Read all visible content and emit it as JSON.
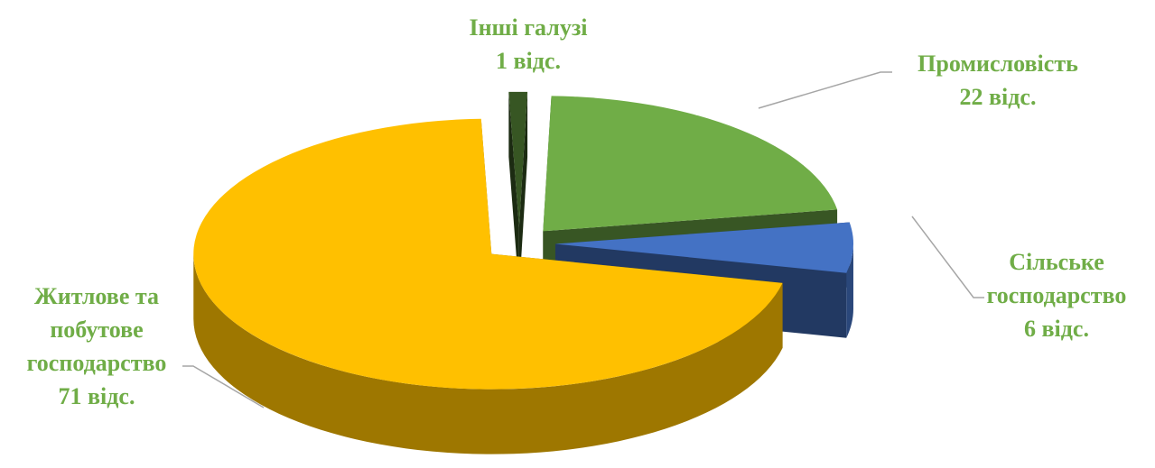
{
  "chart_data": {
    "type": "pie",
    "categories": [
      "Інші галузі",
      "Промисловість",
      "Сільське господарство",
      "Житлове та побутове господарство"
    ],
    "values": [
      1,
      22,
      6,
      71
    ],
    "value_labels": [
      "1 відс.",
      "22 відс.",
      "6 відс.",
      "71 відс."
    ],
    "colors": [
      "#375623",
      "#70ad47",
      "#4472c4",
      "#ffc000"
    ],
    "label_color": "#70ad47"
  }
}
